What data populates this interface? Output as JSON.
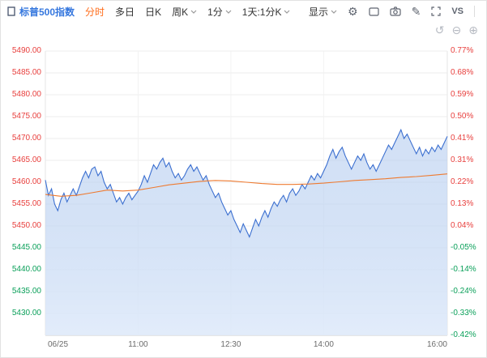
{
  "toolbar": {
    "index_name": "标普500指数",
    "tabs": [
      {
        "label": "分时",
        "active": true
      },
      {
        "label": "多日",
        "active": false
      },
      {
        "label": "日K",
        "active": false
      },
      {
        "label": "周K",
        "active": false,
        "dropdown": true
      },
      {
        "label": "1分",
        "active": false,
        "dropdown": true
      },
      {
        "label": "1天:1分K",
        "active": false,
        "dropdown": true
      },
      {
        "label": "显示",
        "active": false,
        "dropdown": true
      }
    ],
    "icons": [
      {
        "name": "gear-icon",
        "glyph": "⚙"
      },
      {
        "name": "layout-icon",
        "glyph": ""
      },
      {
        "name": "camera-icon",
        "glyph": ""
      },
      {
        "name": "pen-icon",
        "glyph": "✎"
      },
      {
        "name": "expand-icon",
        "glyph": ""
      }
    ],
    "vs_label": "VS"
  },
  "zoom_controls": {
    "undo": "↺",
    "zoom_out": "⊖",
    "zoom_in": "⊕"
  },
  "colors": {
    "up": "#e8403e",
    "down": "#0ba05a",
    "blue": "#3577de",
    "orange": "#ff6c1a",
    "line": "#3b6fd0",
    "avg_line": "#ee7a30",
    "area_top": "#a8c4ec",
    "area_bottom": "#dfeafa",
    "grid": "#ededed",
    "axis_line": "#cccccc",
    "muted": "#6b6b6b"
  },
  "chart_data": {
    "type": "area",
    "title": "标普500指数 分时",
    "x_axis": {
      "labels": [
        "06/25",
        "11:00",
        "12:30",
        "14:00",
        "16:00"
      ],
      "tick_minutes": [
        0,
        90,
        180,
        270,
        390
      ],
      "session_minutes": 390
    },
    "y_axis_price": [
      "5490.00",
      "5485.00",
      "5480.00",
      "5475.00",
      "5470.00",
      "5465.00",
      "5460.00",
      "5455.00",
      "5450.00",
      "5445.00",
      "5440.00",
      "5435.00",
      "5430.00"
    ],
    "y_axis_pct": [
      "0.77%",
      "0.68%",
      "0.59%",
      "0.50%",
      "0.41%",
      "0.31%",
      "0.22%",
      "0.13%",
      "0.04%",
      "-0.05%",
      "-0.14%",
      "-0.24%",
      "-0.33%",
      "-0.42%"
    ],
    "price_range": [
      5425,
      5490
    ],
    "grid": true,
    "series": [
      {
        "name": "price",
        "step_minutes": 3,
        "values": [
          5460.5,
          5457.0,
          5458.5,
          5455.0,
          5453.5,
          5456.0,
          5457.5,
          5455.5,
          5457.0,
          5458.5,
          5457.0,
          5459.0,
          5461.0,
          5462.5,
          5461.0,
          5463.0,
          5463.5,
          5461.5,
          5462.5,
          5460.0,
          5458.5,
          5459.5,
          5457.5,
          5455.5,
          5456.5,
          5455.0,
          5456.5,
          5457.5,
          5456.0,
          5457.0,
          5458.0,
          5459.5,
          5461.5,
          5460.0,
          5462.0,
          5464.0,
          5463.0,
          5464.5,
          5465.5,
          5463.5,
          5464.5,
          5462.5,
          5461.0,
          5462.0,
          5460.5,
          5461.5,
          5463.0,
          5464.0,
          5462.5,
          5463.5,
          5462.0,
          5460.5,
          5461.5,
          5459.5,
          5458.0,
          5456.5,
          5457.5,
          5455.5,
          5454.0,
          5452.5,
          5453.5,
          5451.5,
          5450.0,
          5448.5,
          5450.5,
          5449.0,
          5447.5,
          5449.5,
          5451.5,
          5450.0,
          5452.0,
          5453.5,
          5452.0,
          5454.0,
          5455.5,
          5454.5,
          5456.0,
          5457.0,
          5455.5,
          5457.5,
          5458.5,
          5457.0,
          5458.0,
          5459.5,
          5458.5,
          5460.0,
          5461.5,
          5460.5,
          5462.0,
          5461.0,
          5462.5,
          5464.0,
          5466.0,
          5467.5,
          5465.5,
          5467.0,
          5468.0,
          5466.0,
          5464.5,
          5463.0,
          5464.5,
          5466.0,
          5465.0,
          5466.5,
          5464.5,
          5463.0,
          5464.0,
          5462.5,
          5464.0,
          5465.5,
          5467.0,
          5468.5,
          5467.5,
          5469.0,
          5470.5,
          5472.0,
          5470.0,
          5471.0,
          5469.5,
          5468.0,
          5466.5,
          5468.0,
          5466.0,
          5467.5,
          5466.5,
          5468.0,
          5467.0,
          5468.5,
          5467.5,
          5469.0,
          5470.5
        ]
      },
      {
        "name": "average",
        "step_minutes": 15,
        "values": [
          5457.2,
          5456.8,
          5457.0,
          5457.6,
          5458.2,
          5458.0,
          5458.2,
          5458.8,
          5459.4,
          5459.8,
          5460.2,
          5460.4,
          5460.3,
          5460.0,
          5459.7,
          5459.5,
          5459.5,
          5459.6,
          5459.8,
          5460.1,
          5460.4,
          5460.6,
          5460.8,
          5461.1,
          5461.3,
          5461.6,
          5461.9
        ]
      }
    ]
  }
}
